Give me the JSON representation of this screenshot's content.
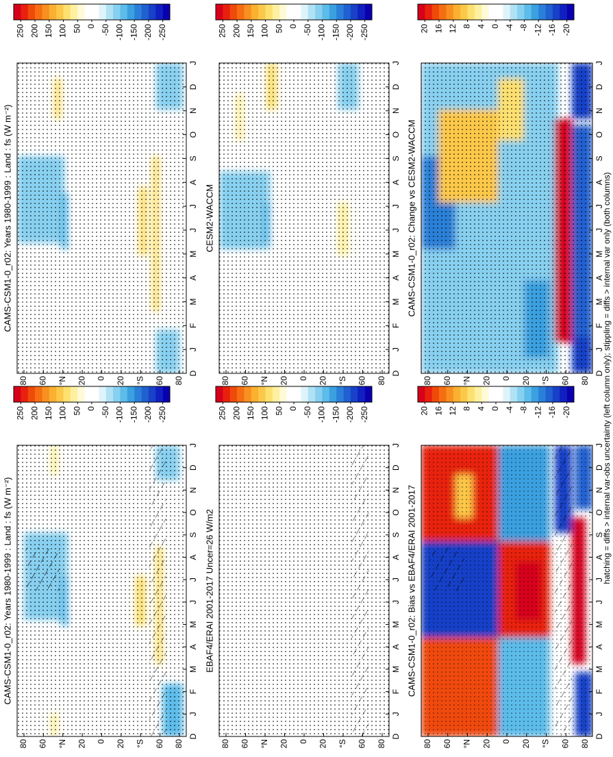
{
  "footnote": "hatching = diffs > internal var-obs uncertainty (left column only); stippling = diffs > internal var only (both columns)",
  "months": [
    "D",
    "J",
    "F",
    "M",
    "A",
    "M",
    "J",
    "J",
    "A",
    "S",
    "O",
    "N",
    "D",
    "J"
  ],
  "latitudes": [
    "80",
    "60",
    "°N",
    "20",
    "0",
    "20",
    "°S",
    "60",
    "80"
  ],
  "colorbar_colors": [
    "#d7001a",
    "#e8200e",
    "#f04a0a",
    "#f56e12",
    "#f89020",
    "#fbb030",
    "#fcc84a",
    "#fde070",
    "#fef0a0",
    "#fffad8",
    "#ffffff",
    "#ffffff",
    "#dff3fb",
    "#b0e2f6",
    "#88d0f0",
    "#5cbcea",
    "#3aa0e0",
    "#2a80d8",
    "#2060d0",
    "#1840c8",
    "#1020c0",
    "#0a00b0"
  ],
  "panels": [
    {
      "title": "CAMS-CSM1-0_r02: Years 1980-1999 : Land : fs (W m⁻²)",
      "colorbar_ticks": [
        250,
        200,
        150,
        100,
        50,
        0,
        -50,
        -100,
        -150,
        -200,
        -250
      ]
    },
    {
      "title": "CAMS-CSM1-0_r02: Years 1980-1999 : Land : fs (W m⁻²)",
      "colorbar_ticks": [
        250,
        200,
        150,
        100,
        50,
        0,
        -50,
        -100,
        -150,
        -200,
        -250
      ]
    },
    {
      "title": "EBAF4/ERAI 2001-2017 Uncer=26 W/m2",
      "colorbar_ticks": [
        250,
        200,
        150,
        100,
        50,
        0,
        -50,
        -100,
        -150,
        -200,
        -250
      ]
    },
    {
      "title": "CESM2-WACCM",
      "colorbar_ticks": [
        250,
        200,
        150,
        100,
        50,
        0,
        -50,
        -100,
        -150,
        -200,
        -250
      ]
    },
    {
      "title": "CAMS-CSM1-0_r02: Bias vs EBAF4/ERAI 2001-2017",
      "colorbar_ticks": [
        20,
        16,
        12,
        8,
        4,
        0,
        -4,
        -8,
        -12,
        -16,
        -20
      ]
    },
    {
      "title": "CAMS-CSM1-0_r02: Change vs CESM2-WACCM",
      "colorbar_ticks": [
        20,
        16,
        12,
        8,
        4,
        0,
        -4,
        -8,
        -12,
        -16,
        -20
      ]
    }
  ]
}
